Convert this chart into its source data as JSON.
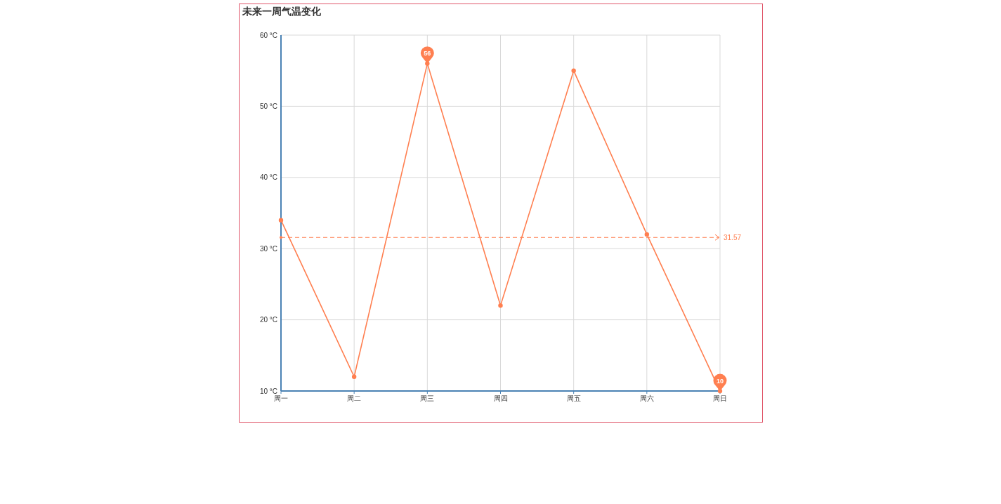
{
  "chart_data": {
    "type": "line",
    "title": "未来一周气温变化",
    "categories": [
      "周一",
      "周二",
      "周三",
      "周四",
      "周五",
      "周六",
      "周日"
    ],
    "series": [
      {
        "color": "#ff7f50",
        "values": [
          34,
          12,
          56,
          22,
          55,
          32,
          10
        ]
      }
    ],
    "ylim": [
      10,
      60
    ],
    "yticks": [
      {
        "value": 10,
        "label": "10 °C"
      },
      {
        "value": 20,
        "label": "20 °C"
      },
      {
        "value": 30,
        "label": "30 °C"
      },
      {
        "value": 40,
        "label": "40 °C"
      },
      {
        "value": 50,
        "label": "50 °C"
      },
      {
        "value": 60,
        "label": "60 °C"
      }
    ],
    "grid": true,
    "marker": "circle",
    "line_style": "solid",
    "annotations": [
      {
        "text": "56",
        "x": "周三",
        "y": 56
      },
      {
        "text": "10",
        "x": "周日",
        "y": 10
      }
    ],
    "ref_lines": [
      {
        "axis": "y",
        "value": 31.57,
        "label": "31.57",
        "color": "#ff7f50",
        "line_style": "dashed"
      }
    ]
  }
}
